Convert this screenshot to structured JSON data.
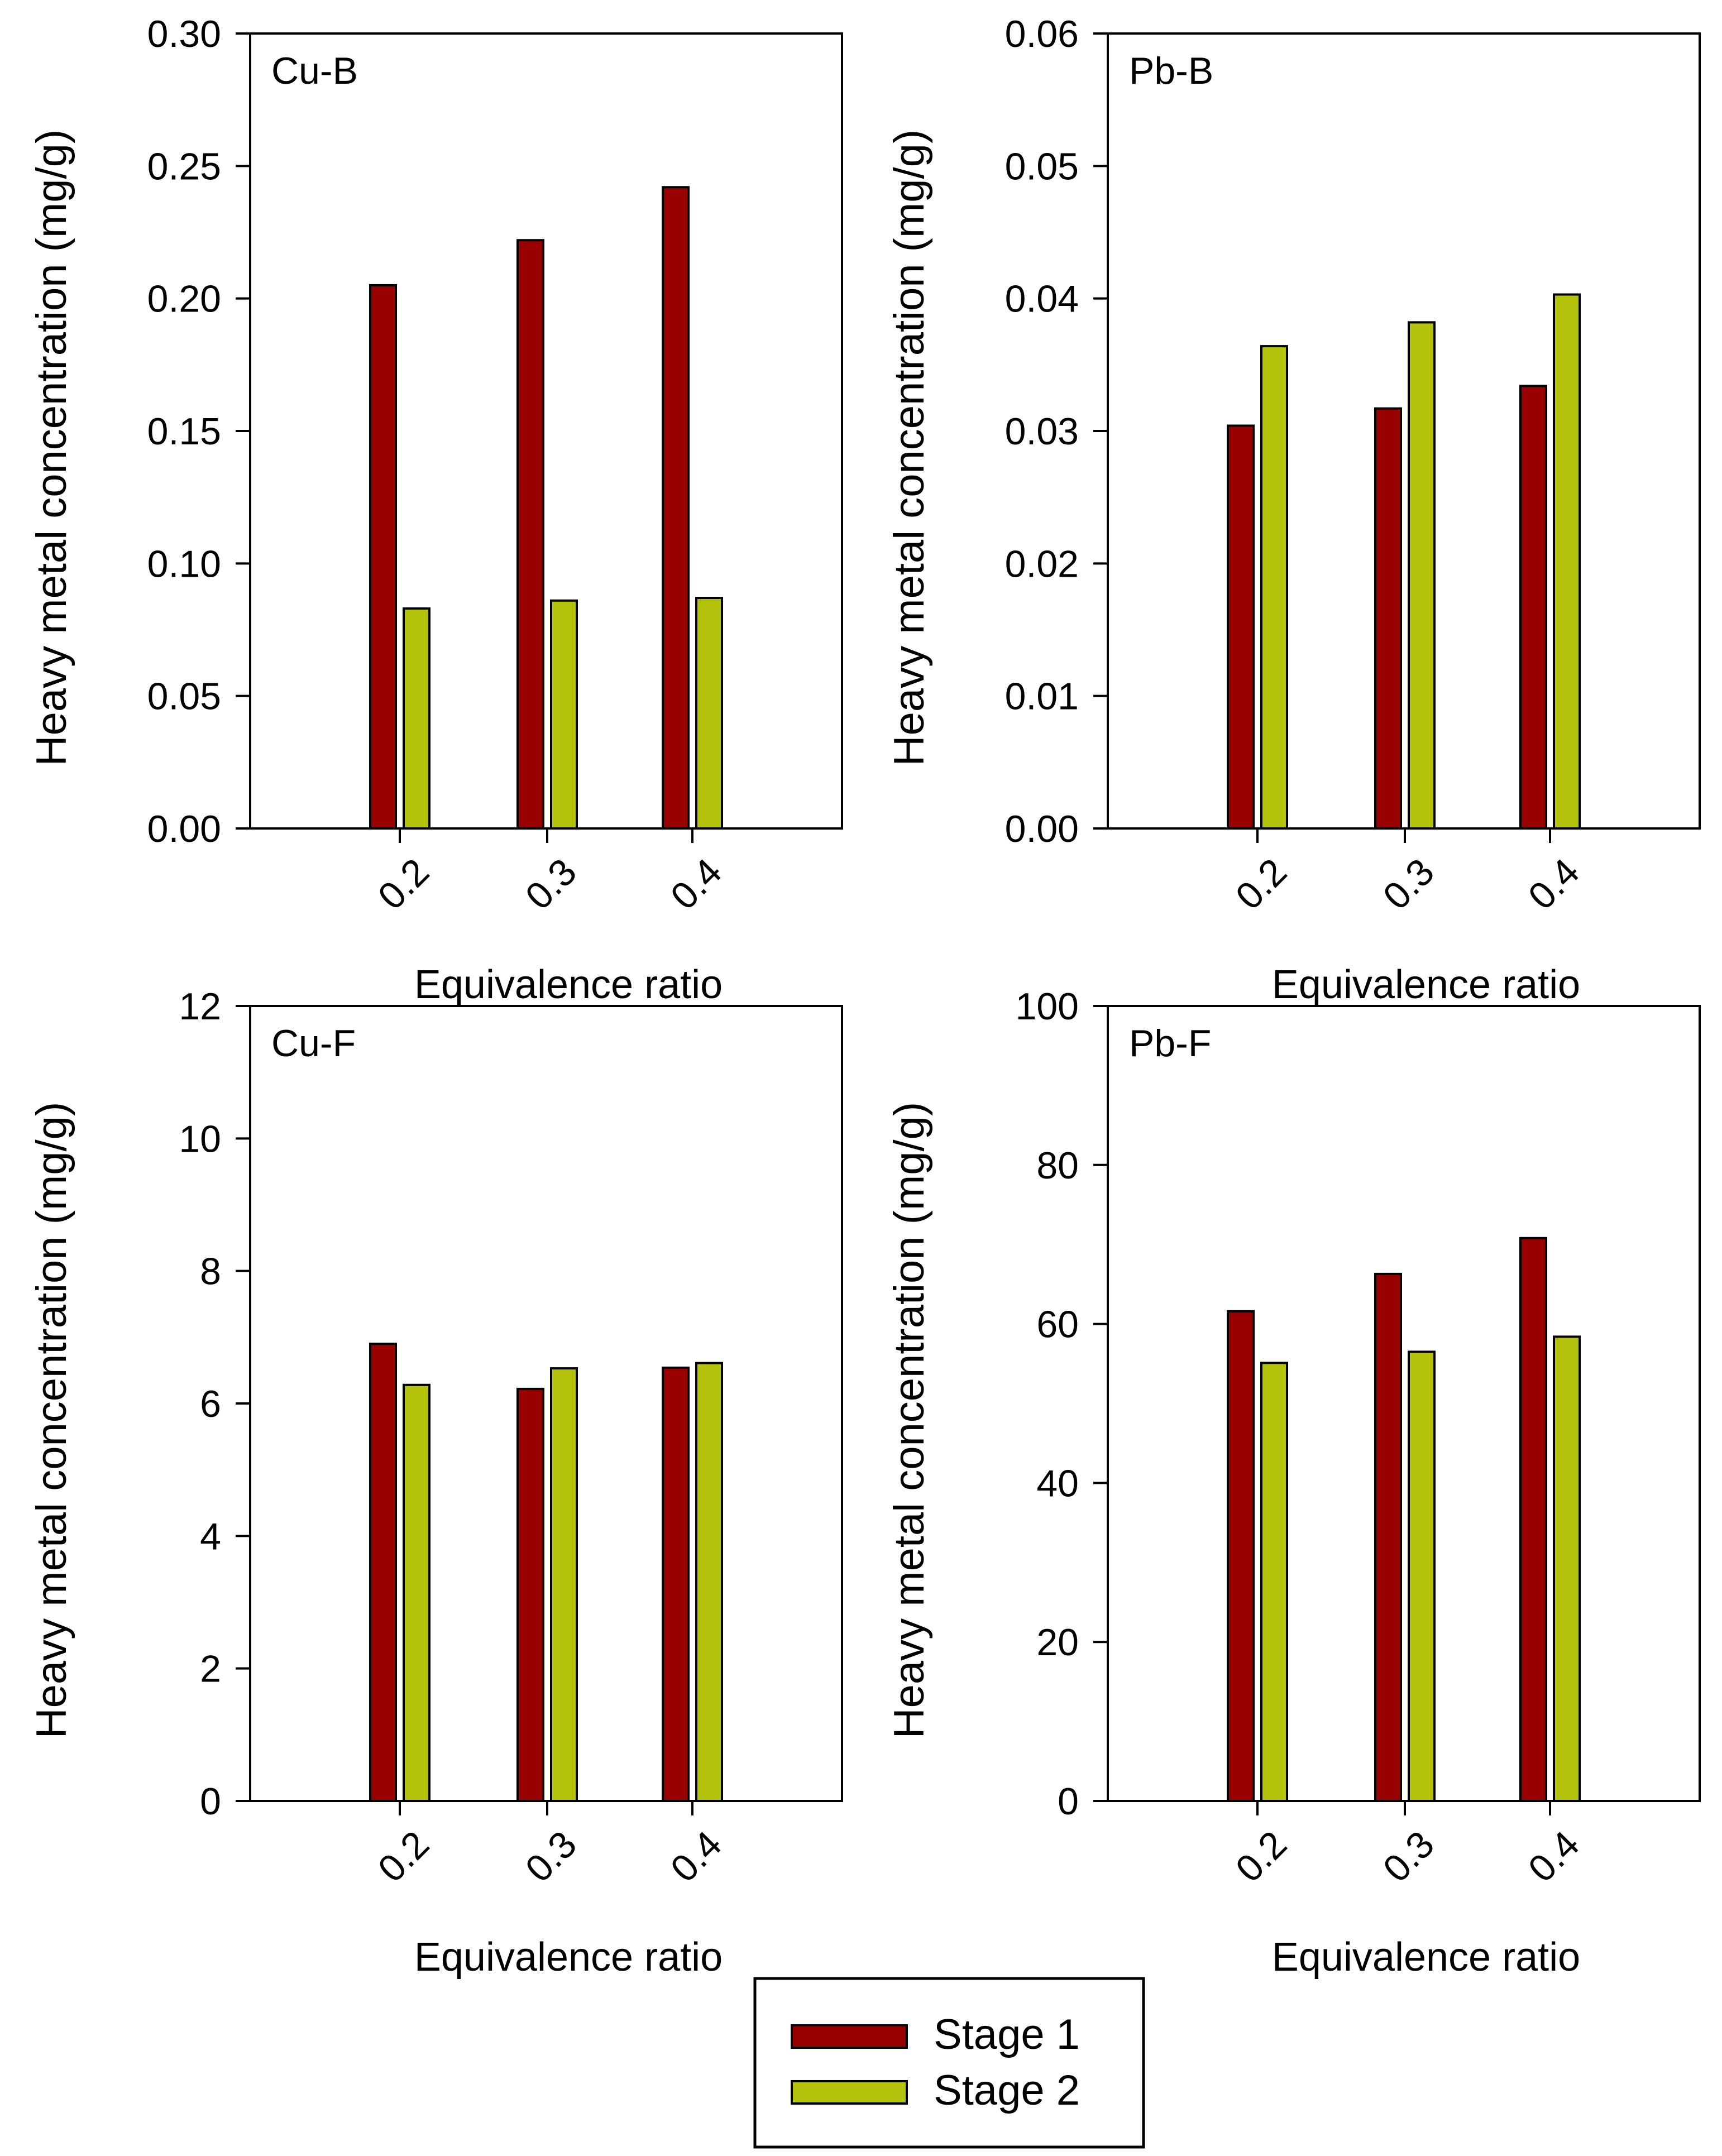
{
  "colors": {
    "stage1": "#990000",
    "stage2": "#b5c20c"
  },
  "legend": {
    "entries": [
      "Stage 1",
      "Stage 2"
    ],
    "placement": "bottom-center"
  },
  "chart_data": [
    {
      "type": "bar",
      "panel_label": "Cu-B",
      "xlabel": "Equivalence ratio",
      "ylabel": "Heavy metal concentration (mg/g)",
      "categories": [
        "0.2",
        "0.3",
        "0.4"
      ],
      "ylim": [
        0,
        0.3
      ],
      "yticks": [
        "0.00",
        "0.05",
        "0.10",
        "0.15",
        "0.20",
        "0.25",
        "0.30"
      ],
      "series": [
        {
          "name": "Stage 1",
          "values": [
            0.205,
            0.222,
            0.242
          ]
        },
        {
          "name": "Stage 2",
          "values": [
            0.083,
            0.086,
            0.087
          ]
        }
      ]
    },
    {
      "type": "bar",
      "panel_label": "Pb-B",
      "xlabel": "Equivalence ratio",
      "ylabel": "Heavy metal concentration (mg/g)",
      "categories": [
        "0.2",
        "0.3",
        "0.4"
      ],
      "ylim": [
        0,
        0.06
      ],
      "yticks": [
        "0.00",
        "0.01",
        "0.02",
        "0.03",
        "0.04",
        "0.05",
        "0.06"
      ],
      "series": [
        {
          "name": "Stage 1",
          "values": [
            0.0304,
            0.0317,
            0.0334
          ]
        },
        {
          "name": "Stage 2",
          "values": [
            0.0364,
            0.0382,
            0.0403
          ]
        }
      ]
    },
    {
      "type": "bar",
      "panel_label": "Cu-F",
      "xlabel": "Equivalence ratio",
      "ylabel": "Heavy metal concentration (mg/g)",
      "categories": [
        "0.2",
        "0.3",
        "0.4"
      ],
      "ylim": [
        0,
        12
      ],
      "yticks": [
        "0",
        "2",
        "4",
        "6",
        "8",
        "10",
        "12"
      ],
      "series": [
        {
          "name": "Stage 1",
          "values": [
            6.9,
            6.22,
            6.54
          ]
        },
        {
          "name": "Stage 2",
          "values": [
            6.28,
            6.53,
            6.61
          ]
        }
      ]
    },
    {
      "type": "bar",
      "panel_label": "Pb-F",
      "xlabel": "Equivalence ratio",
      "ylabel": "Heavy metal concentration (mg/g)",
      "categories": [
        "0.2",
        "0.3",
        "0.4"
      ],
      "ylim": [
        0,
        100
      ],
      "yticks": [
        "0",
        "20",
        "40",
        "60",
        "80",
        "100"
      ],
      "series": [
        {
          "name": "Stage 1",
          "values": [
            61.6,
            66.3,
            70.8
          ]
        },
        {
          "name": "Stage 2",
          "values": [
            55.1,
            56.5,
            58.4
          ]
        }
      ]
    }
  ]
}
